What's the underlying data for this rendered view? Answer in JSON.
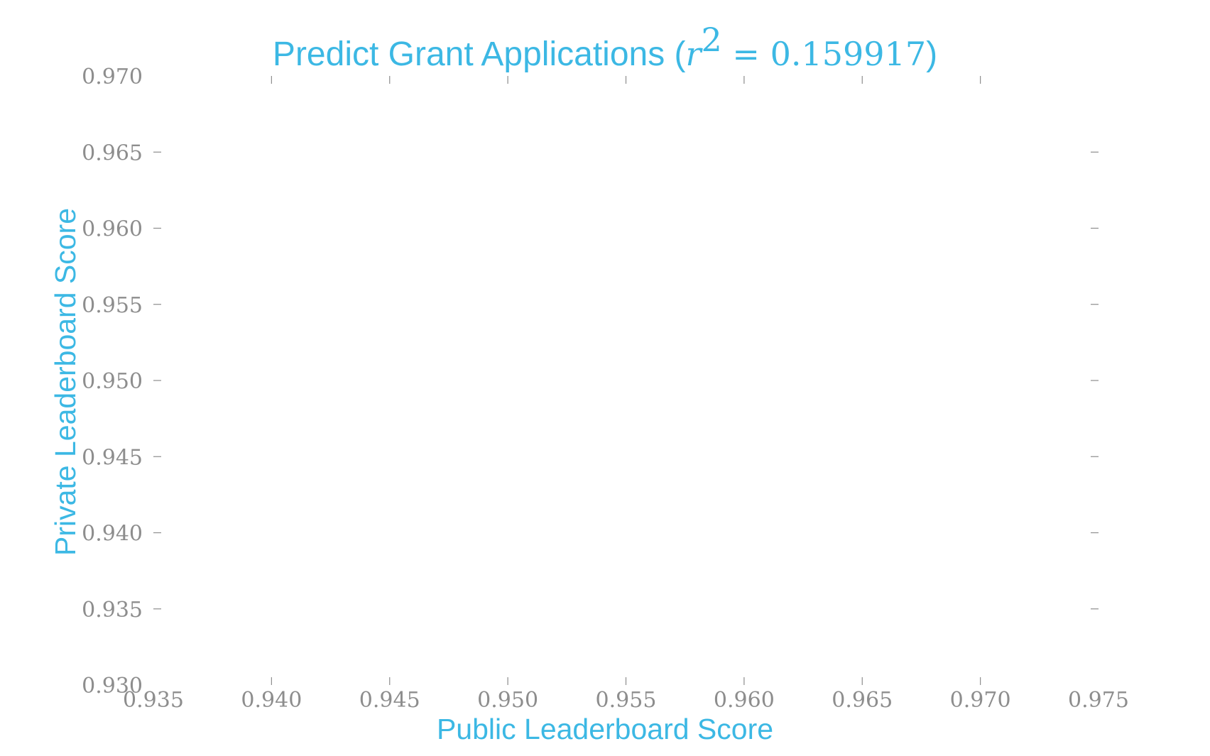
{
  "colors": {
    "accent": "#3cb8e4",
    "tick": "#8d8d8d",
    "background": "#ffffff"
  },
  "chart_data": {
    "type": "scatter",
    "title_text": "Predict Grant Applications (",
    "title_math_var": "r",
    "title_math_exp": "2",
    "title_math_value": " = 0.159917",
    "title_close": ")",
    "xlabel": "Public Leaderboard Score",
    "ylabel": "Private Leaderboard Score",
    "xlim": [
      0.935,
      0.975
    ],
    "ylim": [
      0.93,
      0.97
    ],
    "xticks": [
      "0.935",
      "0.940",
      "0.945",
      "0.950",
      "0.955",
      "0.960",
      "0.965",
      "0.970",
      "0.975"
    ],
    "yticks": [
      "0.930",
      "0.935",
      "0.940",
      "0.945",
      "0.950",
      "0.955",
      "0.960",
      "0.965",
      "0.970"
    ],
    "grid": false,
    "points": []
  }
}
